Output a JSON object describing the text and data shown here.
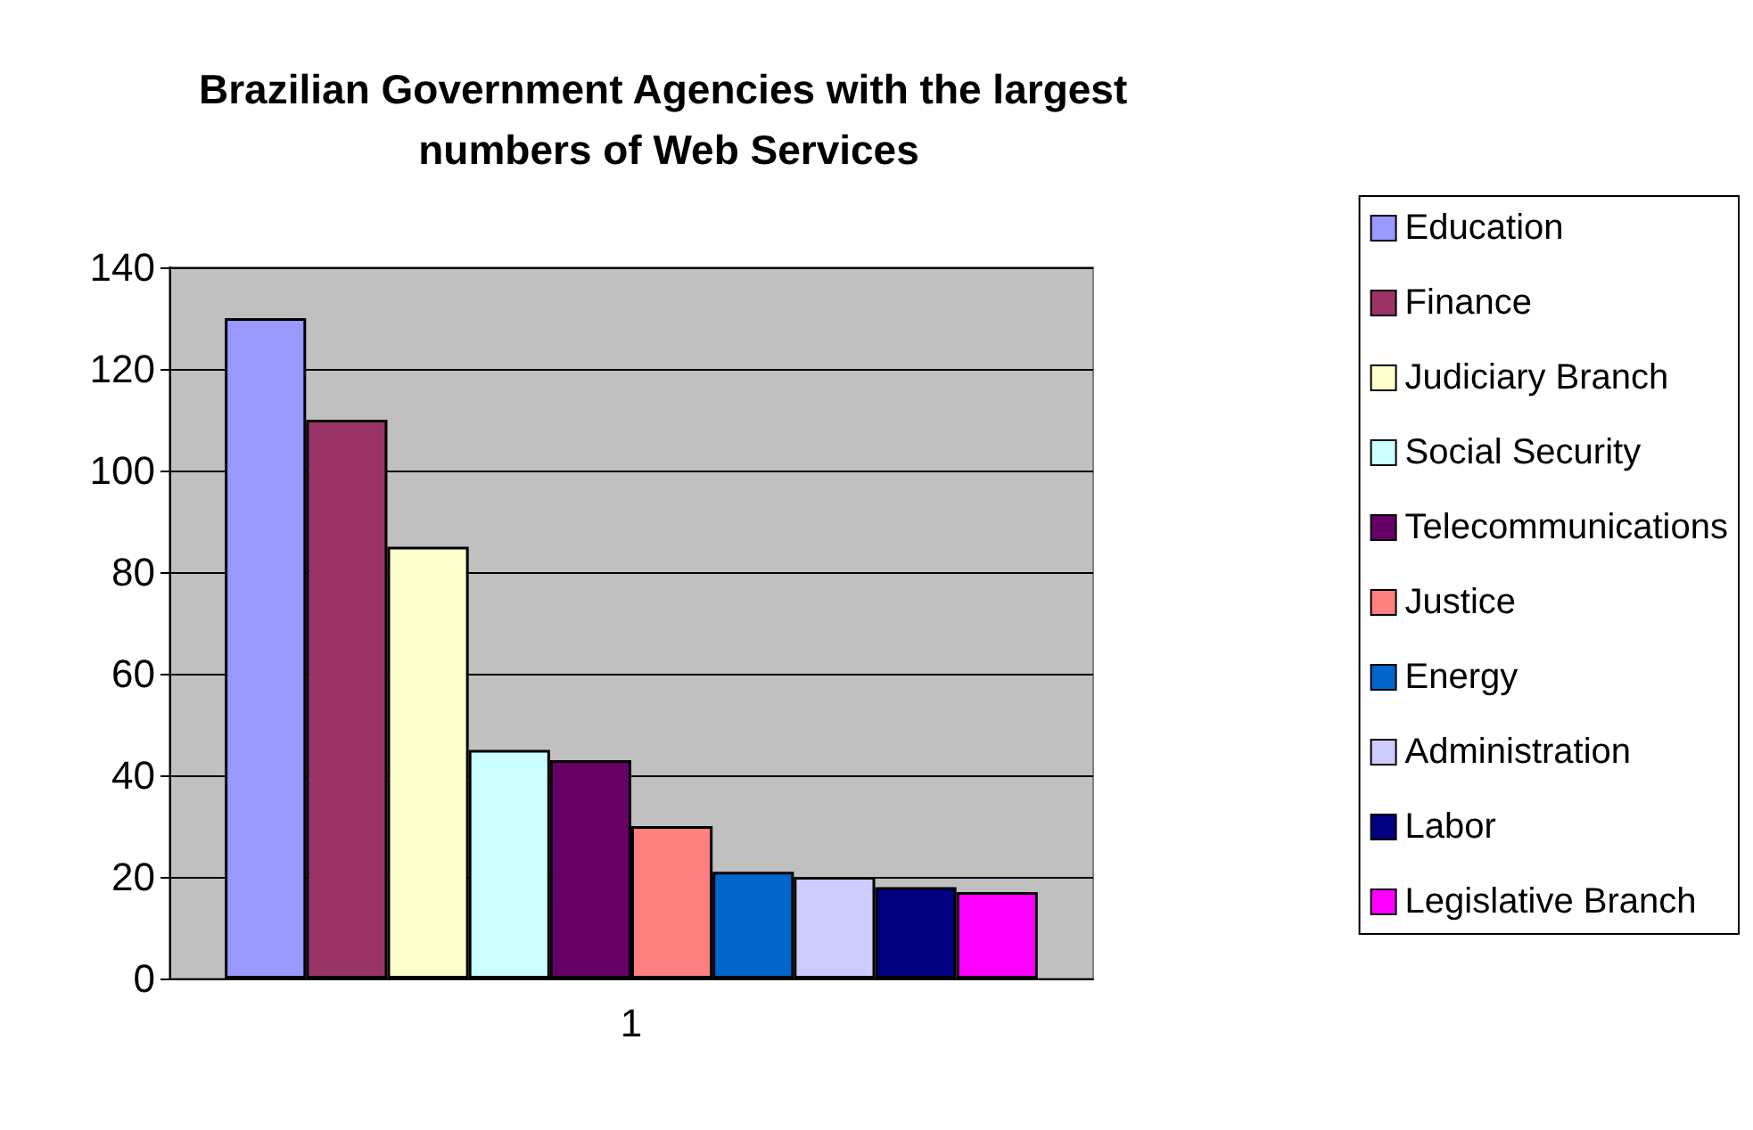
{
  "chart_data": {
    "type": "bar",
    "title": "Brazilian Government Agencies with the largest numbers of Web Services",
    "categories": [
      "1"
    ],
    "series": [
      {
        "name": "Education",
        "color": "#9999ff",
        "values": [
          130
        ]
      },
      {
        "name": "Finance",
        "color": "#993366",
        "values": [
          110
        ]
      },
      {
        "name": "Judiciary Branch",
        "color": "#ffffcc",
        "values": [
          85
        ]
      },
      {
        "name": "Social Security",
        "color": "#ccffff",
        "values": [
          45
        ]
      },
      {
        "name": "Telecommunications",
        "color": "#660066",
        "values": [
          43
        ]
      },
      {
        "name": "Justice",
        "color": "#ff8080",
        "values": [
          30
        ]
      },
      {
        "name": "Energy",
        "color": "#0066cc",
        "values": [
          21
        ]
      },
      {
        "name": "Administration",
        "color": "#ccccff",
        "values": [
          20
        ]
      },
      {
        "name": "Labor",
        "color": "#000080",
        "values": [
          18
        ]
      },
      {
        "name": "Legislative Branch",
        "color": "#ff00ff",
        "values": [
          17
        ]
      }
    ],
    "ylim": [
      0,
      140
    ],
    "yticks": [
      0,
      20,
      40,
      60,
      80,
      100,
      120,
      140
    ],
    "grid": "y",
    "legend": "right"
  }
}
